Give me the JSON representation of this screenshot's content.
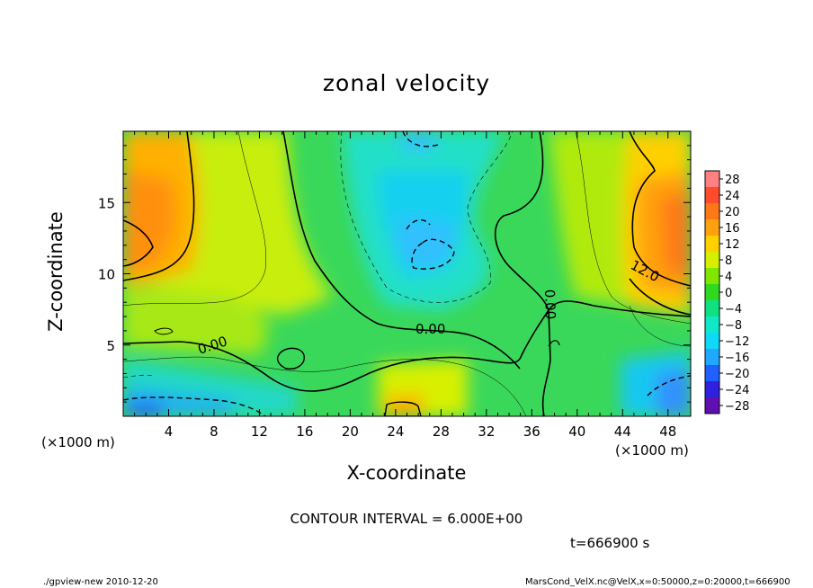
{
  "chart_data": {
    "type": "heatmap",
    "title": "zonal velocity",
    "xlabel": "X-coordinate",
    "ylabel": "Z-coordinate",
    "x_unit": "(×1000 m)",
    "y_unit": "(×1000 m)",
    "xlim": [
      0,
      50
    ],
    "ylim": [
      0,
      20
    ],
    "x_ticks": [
      4,
      8,
      12,
      16,
      20,
      24,
      28,
      32,
      36,
      40,
      44,
      48
    ],
    "y_ticks": [
      5,
      10,
      15
    ],
    "colorbar": {
      "levels": [
        28,
        24,
        20,
        16,
        12,
        8,
        4,
        0,
        -4,
        -8,
        -12,
        -16,
        -20,
        -24,
        -28
      ],
      "labels": [
        "28",
        "24",
        "20",
        "16",
        "12",
        "8",
        "4",
        "0",
        "−4",
        "−8",
        "−12",
        "−16",
        "−20",
        "−24",
        "−28"
      ],
      "colors": [
        "#ff8080",
        "#ff4c2c",
        "#ff7818",
        "#ffa010",
        "#ffd000",
        "#d4f000",
        "#80e800",
        "#30d820",
        "#10e080",
        "#10e8c8",
        "#10d8f8",
        "#20a8ff",
        "#2060ff",
        "#3020e0",
        "#6010b0"
      ]
    },
    "contour_labels": [
      "0.00",
      "0.00",
      "0.00",
      "12.0"
    ],
    "contour_interval": "CONTOUR INTERVAL = 6.000E+00",
    "time": "t=666900 s",
    "grid": false
  },
  "footer": {
    "left": "./gpview-new  2010-12-20",
    "right": "MarsCond_VelX.nc@VelX,x=0:50000,z=0:20000,t=666900"
  }
}
